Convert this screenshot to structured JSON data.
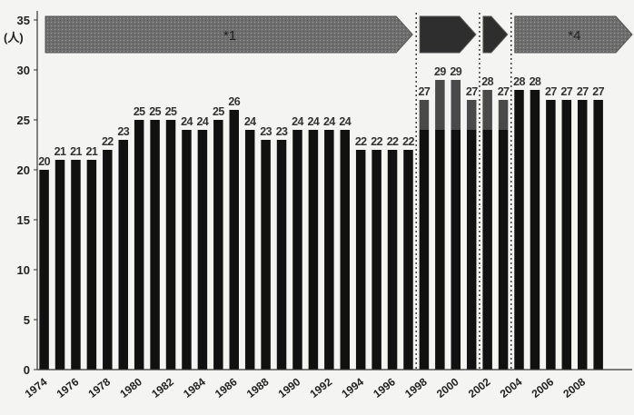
{
  "chart_data": {
    "type": "bar",
    "y_unit": "(人)",
    "ylim": [
      0,
      35
    ],
    "y_ticks": [
      0,
      5,
      10,
      15,
      20,
      25,
      30,
      35
    ],
    "x_tick_labels": [
      "1974",
      "1976",
      "1978",
      "1980",
      "1982",
      "1984",
      "1986",
      "1988",
      "1990",
      "1992",
      "1994",
      "1996",
      "1998",
      "2000",
      "2002",
      "2004",
      "2006",
      "2008"
    ],
    "categories": [
      "1974",
      "1975",
      "1976",
      "1977",
      "1978",
      "1979",
      "1980",
      "1981",
      "1982",
      "1983",
      "1984",
      "1985",
      "1986",
      "1987",
      "1988",
      "1989",
      "1990",
      "1991",
      "1992",
      "1993",
      "1994",
      "1995",
      "1996",
      "1997",
      "1998",
      "1999",
      "2000",
      "2001",
      "2002",
      "2003",
      "2004",
      "2005",
      "2006",
      "2007",
      "2008",
      "2009"
    ],
    "values": [
      20,
      21,
      21,
      21,
      22,
      23,
      25,
      25,
      25,
      24,
      24,
      25,
      26,
      24,
      23,
      23,
      24,
      24,
      24,
      24,
      22,
      22,
      22,
      22,
      27,
      29,
      29,
      27,
      28,
      27,
      28,
      28,
      27,
      27,
      27,
      27
    ],
    "value_labels": [
      "20",
      "21",
      "21",
      "21",
      "22",
      "23",
      "25",
      "25",
      "25",
      "24",
      "24",
      "25",
      "26",
      "24",
      "23",
      "23",
      "24",
      "24",
      "24",
      "24",
      "22",
      "22",
      "22",
      "22",
      "27",
      "29",
      "29",
      "27",
      "28",
      "27",
      "28",
      "28",
      "27",
      "27",
      "27",
      "27"
    ],
    "base_level": 24,
    "grid": false,
    "period_arrows": [
      {
        "label": "*1",
        "start": "1974",
        "end": "1997"
      },
      {
        "label": "",
        "start": "1998",
        "end": "2001"
      },
      {
        "label": "",
        "start": "2002",
        "end": "2003"
      },
      {
        "label": "*4",
        "start": "2004",
        "end": "2009"
      }
    ],
    "period_dividers": [
      "1997/1998",
      "2001/2002",
      "2003/2004"
    ],
    "colors": {
      "bar": "#111111",
      "bar_upper": "#4a4a4a",
      "arrow": "#7a7a7a",
      "axis": "#333333"
    }
  }
}
